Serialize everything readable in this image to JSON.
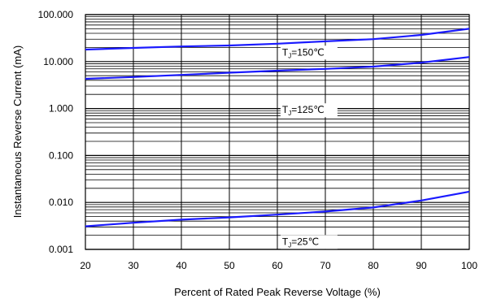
{
  "chart_data": {
    "type": "line",
    "xlabel": "Percent of Rated Peak Reverse Voltage (%)",
    "ylabel": "Instantaneous Reverse Current (mA)",
    "xlim": [
      20,
      100
    ],
    "ylim": [
      0.001,
      100
    ],
    "yscale": "log",
    "grid": true,
    "x_ticks": [
      20,
      30,
      40,
      50,
      60,
      70,
      80,
      90,
      100
    ],
    "x_tick_labels": [
      "20",
      "30",
      "40",
      "50",
      "60",
      "70",
      "80",
      "90",
      "100"
    ],
    "y_ticks": [
      0.001,
      0.01,
      0.1,
      1,
      10,
      100
    ],
    "y_tick_labels": [
      "0.001",
      "0.010",
      "0.100",
      "1.000",
      "10.000",
      "100.000"
    ],
    "series": [
      {
        "x": [
          20,
          30,
          40,
          50,
          60,
          70,
          80,
          90,
          100
        ],
        "values": [
          18,
          19.5,
          21,
          22,
          24,
          27,
          30,
          37,
          50
        ]
      },
      {
        "x": [
          20,
          30,
          40,
          50,
          60,
          70,
          80,
          90,
          100
        ],
        "values": [
          4.3,
          4.7,
          5.2,
          5.8,
          6.4,
          7.0,
          7.8,
          9.5,
          12.5
        ]
      },
      {
        "x": [
          20,
          30,
          40,
          50,
          60,
          70,
          80,
          90,
          100
        ],
        "values": [
          0.0031,
          0.0037,
          0.0043,
          0.0048,
          0.0055,
          0.0064,
          0.0078,
          0.011,
          0.017
        ]
      }
    ],
    "annotations": [
      {
        "prefix": "T",
        "sub": "J",
        "suffix": "=150℃",
        "x": 61,
        "y": 13.5
      },
      {
        "prefix": "T",
        "sub": "J",
        "suffix": "=125℃",
        "x": 61,
        "y": 0.8
      },
      {
        "prefix": "T",
        "sub": "J",
        "suffix": "=25℃",
        "x": 61,
        "y": 0.00125
      }
    ],
    "colors": {
      "line": "#1a1aff",
      "grid": "#000000",
      "text": "#000000"
    }
  }
}
